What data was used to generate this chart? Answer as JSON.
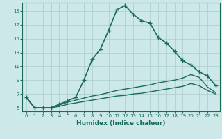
{
  "title": "",
  "xlabel": "Humidex (Indice chaleur)",
  "background_color": "#cce8e8",
  "grid_color": "#aacccc",
  "line_color": "#1a6b5a",
  "xlim": [
    -0.5,
    23.5
  ],
  "ylim": [
    4.5,
    20.2
  ],
  "yticks": [
    5,
    7,
    9,
    11,
    13,
    15,
    17,
    19
  ],
  "xticks": [
    0,
    1,
    2,
    3,
    4,
    5,
    6,
    7,
    8,
    9,
    10,
    11,
    12,
    13,
    14,
    15,
    16,
    17,
    18,
    19,
    20,
    21,
    22,
    23
  ],
  "lines": [
    {
      "x": [
        0,
        1,
        2,
        3,
        4,
        5,
        6,
        7,
        8,
        9,
        10,
        11,
        12,
        13,
        14,
        15,
        16,
        17,
        18,
        19,
        20,
        21,
        22,
        23
      ],
      "y": [
        6.5,
        5.0,
        5.0,
        5.0,
        5.5,
        6.0,
        6.5,
        9.0,
        12.0,
        13.5,
        16.2,
        19.2,
        19.8,
        18.5,
        17.6,
        17.3,
        15.2,
        14.4,
        13.2,
        11.8,
        11.2,
        10.2,
        9.6,
        8.2
      ],
      "marker": "+",
      "markersize": 4,
      "linewidth": 1.2
    },
    {
      "x": [
        0,
        1,
        2,
        3,
        4,
        5,
        6,
        7,
        8,
        9,
        10,
        11,
        12,
        13,
        14,
        15,
        16,
        17,
        18,
        19,
        20,
        21,
        22,
        23
      ],
      "y": [
        6.5,
        5.0,
        5.0,
        5.0,
        5.4,
        5.8,
        6.1,
        6.4,
        6.7,
        6.9,
        7.2,
        7.5,
        7.7,
        7.9,
        8.1,
        8.3,
        8.6,
        8.8,
        9.0,
        9.3,
        9.8,
        9.4,
        8.0,
        7.2
      ],
      "marker": null,
      "linewidth": 1.0
    },
    {
      "x": [
        0,
        1,
        2,
        3,
        4,
        5,
        6,
        7,
        8,
        9,
        10,
        11,
        12,
        13,
        14,
        15,
        16,
        17,
        18,
        19,
        20,
        21,
        22,
        23
      ],
      "y": [
        6.5,
        5.0,
        5.0,
        5.0,
        5.2,
        5.5,
        5.7,
        5.9,
        6.1,
        6.3,
        6.5,
        6.7,
        6.8,
        7.0,
        7.1,
        7.3,
        7.5,
        7.7,
        7.9,
        8.1,
        8.5,
        8.2,
        7.5,
        7.0
      ],
      "marker": null,
      "linewidth": 1.0
    }
  ]
}
